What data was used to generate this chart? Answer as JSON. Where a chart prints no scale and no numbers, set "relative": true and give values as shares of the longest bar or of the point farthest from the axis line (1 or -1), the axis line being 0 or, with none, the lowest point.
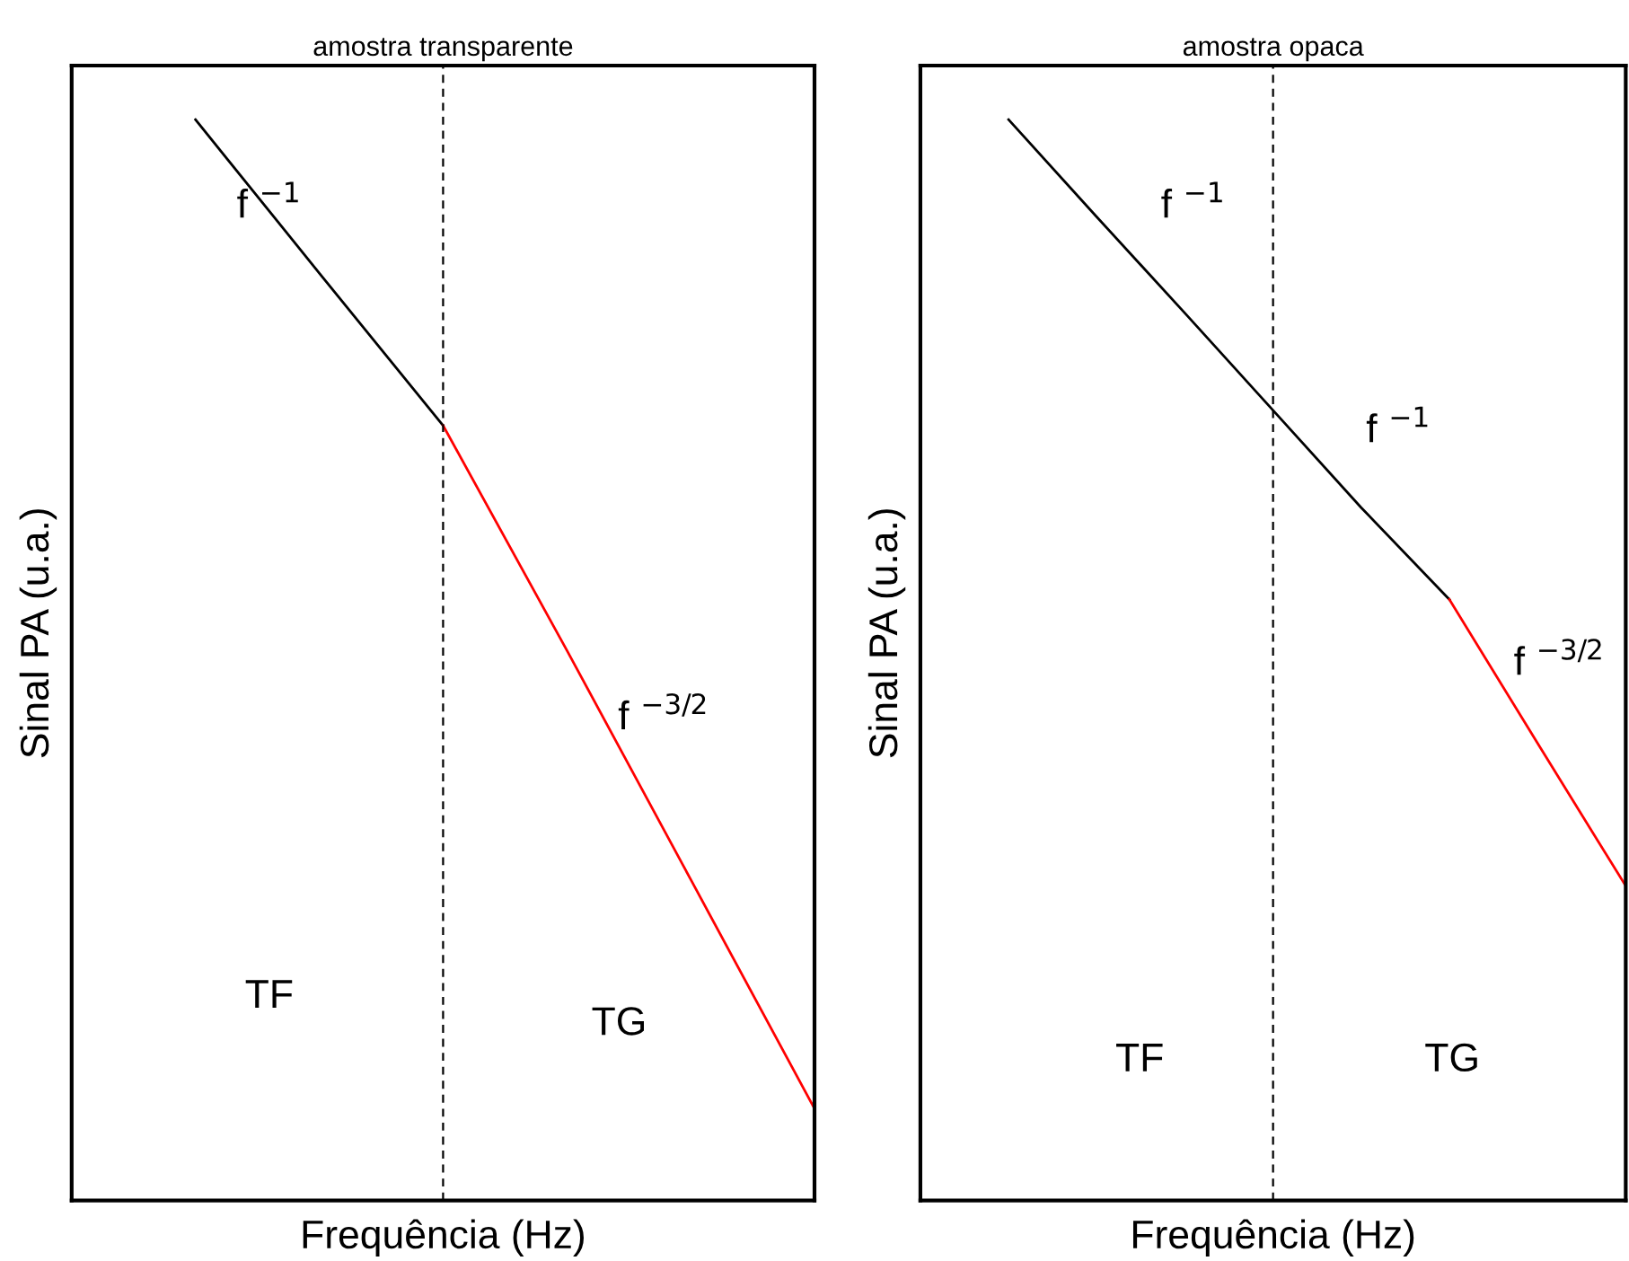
{
  "chart_data": [
    {
      "type": "line",
      "title": "amostra transparente",
      "xlabel": "Frequência (Hz)",
      "ylabel": "Sinal PA (u.a.)",
      "relative": true,
      "grid": false,
      "categories": [
        null,
        null,
        null,
        null,
        null,
        null
      ],
      "series": [
        {
          "color": "#000000",
          "values": [
            1,
            0.858,
            0.717,
            null,
            null,
            null
          ]
        },
        {
          "color": "#ff0000",
          "values": [
            null,
            null,
            0.717,
            0.509,
            0.297,
            0.085
          ]
        }
      ],
      "annotations": [
        "f $^{−1}$",
        "f $^{−3/2}$",
        "TF",
        "TG"
      ]
    },
    {
      "type": "line",
      "title": "amostra opaca",
      "xlabel": "Frequência (Hz)",
      "ylabel": "Sinal PA (u.a.)",
      "relative": true,
      "grid": false,
      "categories": [
        null,
        null,
        null,
        null,
        null,
        null,
        null,
        null
      ],
      "series": [
        {
          "color": "#000000",
          "values": [
            1,
            0.91,
            0.821,
            0.731,
            0.641,
            0.556,
            null,
            null
          ]
        },
        {
          "color": "#ff0000",
          "values": [
            null,
            null,
            null,
            null,
            null,
            0.556,
            0.423,
            0.291
          ]
        }
      ],
      "annotations": [
        "f $^{−1}$",
        "f $^{−1}$",
        "f $^{−3/2}$",
        "TF",
        "TG"
      ]
    }
  ]
}
